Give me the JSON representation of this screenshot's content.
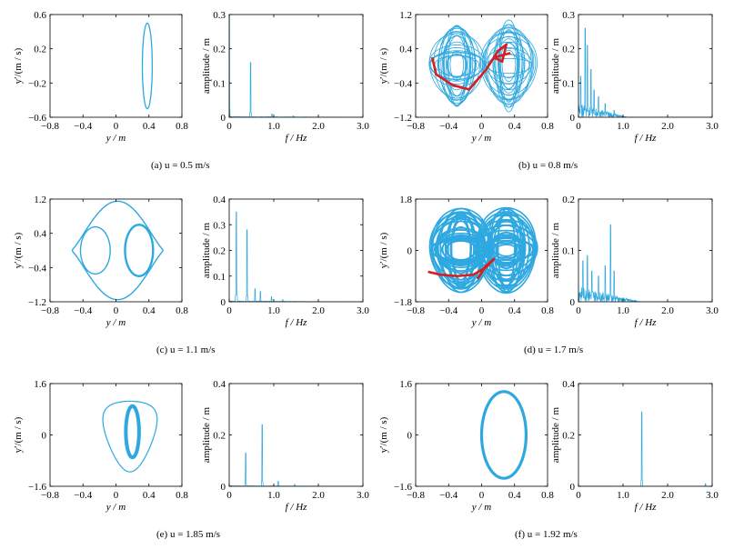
{
  "chart_data": [
    {
      "id": "a-phase",
      "type": "line",
      "kind": "phase",
      "xlabel": "y / m",
      "ylabel": "y′/(m / s)",
      "xlim": [
        -0.8,
        0.8
      ],
      "ylim": [
        -0.6,
        0.6
      ],
      "xticks": [
        "-0.8",
        "-0.4",
        "0",
        "0.4",
        "0.8"
      ],
      "yticks": [
        "-0.6",
        "-0.2",
        "0.2",
        "0.6"
      ],
      "curves": [
        {
          "cx": 0.38,
          "cy": 0.0,
          "rx": 0.06,
          "ry": 0.5,
          "color": "#2ea8e0"
        }
      ]
    },
    {
      "id": "a-spectrum",
      "type": "line",
      "kind": "spectrum",
      "xlabel": "f / Hz",
      "ylabel": "amplitude / m",
      "xlim": [
        0,
        3.0
      ],
      "ylim": [
        0,
        0.3
      ],
      "xticks": [
        "0",
        "1.0",
        "2.0",
        "3.0"
      ],
      "yticks": [
        "0",
        "0.1",
        "0.2",
        "0.3"
      ],
      "peaks": [
        [
          0.0,
          0.3
        ],
        [
          0.48,
          0.16
        ],
        [
          0.96,
          0.01
        ],
        [
          1.44,
          0.004
        ]
      ],
      "noise": 0.002,
      "noiseMax": 3.0
    },
    {
      "id": "b-phase",
      "type": "line",
      "kind": "phase",
      "xlabel": "y / m",
      "ylabel": "y′/(m / s)",
      "xlim": [
        -0.8,
        0.8
      ],
      "ylim": [
        -1.2,
        1.2
      ],
      "xticks": [
        "-0.8",
        "-0.4",
        "0",
        "0.4",
        "0.8"
      ],
      "yticks": [
        "-1.2",
        "-0.4",
        "0.4",
        "1.2"
      ],
      "chaotic": true,
      "centers": [
        -0.3,
        0.33
      ],
      "lobeRx": [
        0.08,
        0.35
      ],
      "lobeRy": [
        0.15,
        1.1
      ],
      "overlay": [
        [
          -0.6,
          0.2
        ],
        [
          -0.55,
          -0.2
        ],
        [
          -0.35,
          -0.45
        ],
        [
          -0.15,
          -0.55
        ],
        [
          0.05,
          -0.1
        ],
        [
          0.2,
          0.35
        ],
        [
          0.3,
          0.5
        ],
        [
          0.25,
          0.1
        ],
        [
          0.15,
          0.2
        ],
        [
          0.35,
          0.3
        ]
      ]
    },
    {
      "id": "b-spectrum",
      "type": "line",
      "kind": "spectrum",
      "xlabel": "f / Hz",
      "ylabel": "amplitude / m",
      "xlim": [
        0,
        3.0
      ],
      "ylim": [
        0,
        0.3
      ],
      "xticks": [
        "0",
        "1.0",
        "2.0",
        "3.0"
      ],
      "yticks": [
        "0",
        "0.1",
        "0.2",
        "0.3"
      ],
      "peaks": [
        [
          0.05,
          0.12
        ],
        [
          0.15,
          0.26
        ],
        [
          0.2,
          0.21
        ],
        [
          0.28,
          0.14
        ],
        [
          0.35,
          0.08
        ],
        [
          0.45,
          0.06
        ],
        [
          0.6,
          0.04
        ],
        [
          0.8,
          0.02
        ]
      ],
      "noise": 0.04,
      "noiseMax": 1.1
    },
    {
      "id": "c-phase",
      "type": "line",
      "kind": "phase",
      "xlabel": "y / m",
      "ylabel": "y′/(m / s)",
      "xlim": [
        -0.8,
        0.8
      ],
      "ylim": [
        -1.2,
        1.2
      ],
      "xticks": [
        "-0.8",
        "-0.4",
        "0",
        "0.4",
        "0.8"
      ],
      "yticks": [
        "-1.2",
        "-0.4",
        "0.4",
        "1.2"
      ],
      "periodic2": true
    },
    {
      "id": "c-spectrum",
      "type": "line",
      "kind": "spectrum",
      "xlabel": "f / Hz",
      "ylabel": "amplitude / m",
      "xlim": [
        0,
        3.0
      ],
      "ylim": [
        0,
        0.4
      ],
      "xticks": [
        "0",
        "1.0",
        "2.0",
        "3.0"
      ],
      "yticks": [
        "0",
        "0.1",
        "0.2",
        "0.3",
        "0.4"
      ],
      "peaks": [
        [
          0.16,
          0.35
        ],
        [
          0.4,
          0.28
        ],
        [
          0.58,
          0.05
        ],
        [
          0.7,
          0.04
        ],
        [
          0.95,
          0.02
        ],
        [
          1.2,
          0.008
        ]
      ],
      "noise": 0.003,
      "noiseMax": 3.0
    },
    {
      "id": "d-phase",
      "type": "line",
      "kind": "phase",
      "xlabel": "y / m",
      "ylabel": "y′/(m / s)",
      "xlim": [
        -0.8,
        0.8
      ],
      "ylim": [
        -1.8,
        1.8
      ],
      "xticks": [
        "-0.8",
        "-0.4",
        "0",
        "0.4",
        "0.8"
      ],
      "yticks": [
        "-1.8",
        "0",
        "1.8"
      ],
      "chaotic": true,
      "dense": true,
      "centers": [
        -0.25,
        0.3
      ],
      "lobeRx": [
        0.1,
        0.38
      ],
      "lobeRy": [
        0.2,
        1.55
      ],
      "overlay": [
        [
          -0.65,
          -0.75
        ],
        [
          -0.5,
          -0.85
        ],
        [
          -0.3,
          -0.9
        ],
        [
          -0.1,
          -0.85
        ],
        [
          0.05,
          -0.6
        ],
        [
          0.15,
          -0.3
        ],
        [
          0.05,
          -0.55
        ],
        [
          -0.05,
          -1.0
        ]
      ]
    },
    {
      "id": "d-spectrum",
      "type": "line",
      "kind": "spectrum",
      "xlabel": "f / Hz",
      "ylabel": "amplitude / m",
      "xlim": [
        0,
        3.0
      ],
      "ylim": [
        0,
        0.2
      ],
      "xticks": [
        "0",
        "1.0",
        "2.0",
        "3.0"
      ],
      "yticks": [
        "0",
        "0.1",
        "0.2"
      ],
      "peaks": [
        [
          0.1,
          0.08
        ],
        [
          0.2,
          0.09
        ],
        [
          0.3,
          0.06
        ],
        [
          0.45,
          0.05
        ],
        [
          0.6,
          0.07
        ],
        [
          0.72,
          0.15
        ],
        [
          0.8,
          0.06
        ]
      ],
      "noise": 0.03,
      "noiseMax": 1.4
    },
    {
      "id": "e-phase",
      "type": "line",
      "kind": "phase",
      "xlabel": "y / m",
      "ylabel": "y′/(m / s)",
      "xlim": [
        -0.8,
        0.8
      ],
      "ylim": [
        -1.6,
        1.6
      ],
      "xticks": [
        "-0.8",
        "-0.4",
        "0",
        "0.4",
        "0.8"
      ],
      "yticks": [
        "-1.6",
        "0",
        "1.6"
      ],
      "periodic3": true
    },
    {
      "id": "e-spectrum",
      "type": "line",
      "kind": "spectrum",
      "xlabel": "f / Hz",
      "ylabel": "amplitude / m",
      "xlim": [
        0,
        3.0
      ],
      "ylim": [
        0,
        0.4
      ],
      "xticks": [
        "0",
        "1.0",
        "2.0",
        "3.0"
      ],
      "yticks": [
        "0",
        "0.2",
        "0.4"
      ],
      "peaks": [
        [
          0.37,
          0.13
        ],
        [
          0.74,
          0.24
        ],
        [
          1.1,
          0.02
        ],
        [
          1.47,
          0.008
        ]
      ],
      "noise": 0.002,
      "noiseMax": 3.0
    },
    {
      "id": "f-phase",
      "type": "line",
      "kind": "phase",
      "xlabel": "y / m",
      "ylabel": "y′/(m / s)",
      "xlim": [
        -0.8,
        0.8
      ],
      "ylim": [
        -1.6,
        1.6
      ],
      "xticks": [
        "-0.8",
        "-0.4",
        "0",
        "0.4",
        "0.8"
      ],
      "yticks": [
        "-1.6",
        "0",
        "1.6"
      ],
      "curves": [
        {
          "cx": 0.27,
          "cy": 0.0,
          "rx": 0.27,
          "ry": 1.35,
          "color": "#2ea8e0",
          "thick": true
        }
      ]
    },
    {
      "id": "f-spectrum",
      "type": "line",
      "kind": "spectrum",
      "xlabel": "f / Hz",
      "ylabel": "amplitude / m",
      "xlim": [
        0,
        3.0
      ],
      "ylim": [
        0,
        0.4
      ],
      "xticks": [
        "0",
        "1.0",
        "2.0",
        "3.0"
      ],
      "yticks": [
        "0",
        "0.2",
        "0.4"
      ],
      "peaks": [
        [
          1.42,
          0.29
        ],
        [
          2.85,
          0.01
        ]
      ],
      "noise": 0.001,
      "noiseMax": 3.0
    }
  ],
  "captions": {
    "a": "(a) u = 0.5 m/s",
    "b": "(b) u = 0.8 m/s",
    "c": "(c) u = 1.1 m/s",
    "d": "(d) u = 1.7 m/s",
    "e": "(e) u = 1.85 m/s",
    "f": "(f) u = 1.92 m/s"
  },
  "colors": {
    "trace": "#2ea8e0",
    "overlay": "#d81e1e",
    "axis": "#000000"
  }
}
